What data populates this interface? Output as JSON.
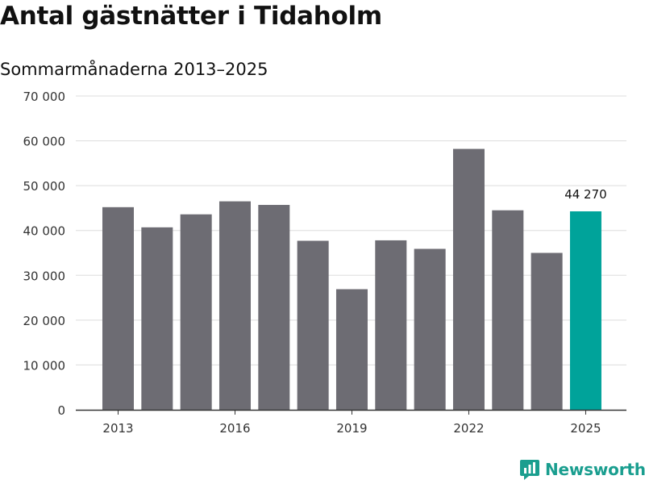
{
  "title": "Antal gästnätter i Tidaholm",
  "subtitle": "Sommarmånaderna 2013–2025",
  "brand": {
    "name": "Newsworthy",
    "icon": "newsworthy-logo-icon",
    "color": "#1a9e8f"
  },
  "chart_data": {
    "type": "bar",
    "categories": [
      "2013",
      "2014",
      "2015",
      "2016",
      "2017",
      "2018",
      "2019",
      "2020",
      "2021",
      "2022",
      "2023",
      "2024",
      "2025"
    ],
    "values": [
      45200,
      40700,
      43600,
      46500,
      45700,
      37700,
      26900,
      37800,
      35900,
      58200,
      44500,
      35000,
      44270
    ],
    "x_tick_labels": [
      "2013",
      "2016",
      "2019",
      "2022",
      "2025"
    ],
    "y_tick_labels": [
      "0",
      "10 000",
      "20 000",
      "30 000",
      "40 000",
      "50 000",
      "60 000",
      "70 000"
    ],
    "ylim": [
      0,
      70000
    ],
    "grid": true,
    "highlight": {
      "category": "2025",
      "label": "44 270",
      "color": "#00a39a"
    },
    "bar_color": "#6d6c73",
    "grid_color": "#dddddd",
    "axis_color": "#333333"
  }
}
